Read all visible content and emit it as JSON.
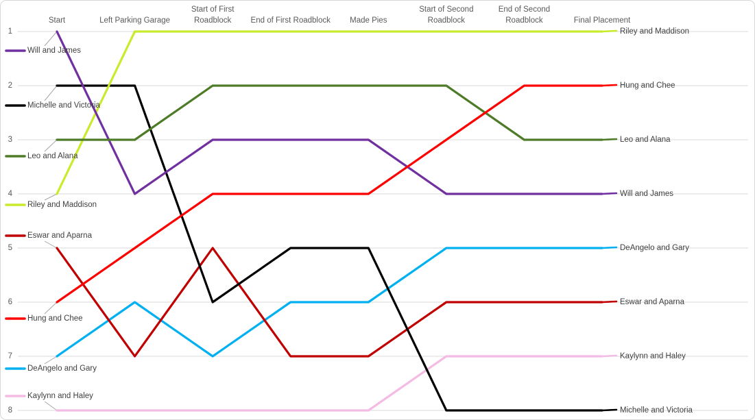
{
  "chart_data": {
    "type": "line",
    "subtype": "bump-rank-chart",
    "title": "",
    "xlabel": "",
    "ylabel": "",
    "grid": true,
    "y_axis": {
      "ticks": [
        "1",
        "2",
        "3",
        "4",
        "5",
        "6",
        "7",
        "8"
      ],
      "min": 1,
      "max": 8,
      "orientation": "rank-1-at-top"
    },
    "legend_position": "left-start-labels-and-right-end-labels",
    "categories": [
      "Start",
      "Left Parking Garage",
      "Start of First Roadblock",
      "End of First Roadblock",
      "Made Pies",
      "Start of Second Roadblock",
      "End of Second Roadblock",
      "Final Placement"
    ],
    "category_label_lines": [
      [
        "Start"
      ],
      [
        "Left Parking Garage"
      ],
      [
        "Start of First",
        "Roadblock"
      ],
      [
        "End of First Roadblock"
      ],
      [
        "Made Pies"
      ],
      [
        "Start of Second",
        "Roadblock"
      ],
      [
        "End of Second",
        "Roadblock"
      ],
      [
        "Final Placement"
      ]
    ],
    "series": [
      {
        "name": "Will and James",
        "color": "#7030A0",
        "values": [
          1,
          4,
          3,
          3,
          3,
          4,
          4,
          4
        ]
      },
      {
        "name": "Michelle and Victoria",
        "color": "#000000",
        "values": [
          2,
          2,
          6,
          5,
          5,
          8,
          8,
          8
        ]
      },
      {
        "name": "Leo and Alana",
        "color": "#4E7B28",
        "values": [
          3,
          3,
          2,
          2,
          2,
          2,
          3,
          3
        ]
      },
      {
        "name": "Riley and Maddison",
        "color": "#C8EB2D",
        "values": [
          4,
          1,
          1,
          1,
          1,
          1,
          1,
          1
        ]
      },
      {
        "name": "Eswar and Aparna",
        "color": "#C00000",
        "values": [
          5,
          7,
          5,
          7,
          7,
          6,
          6,
          6
        ]
      },
      {
        "name": "Hung and Chee",
        "color": "#FF0000",
        "values": [
          6,
          5,
          4,
          4,
          4,
          3,
          2,
          2
        ]
      },
      {
        "name": "DeAngelo and Gary",
        "color": "#00B0F0",
        "values": [
          7,
          6,
          7,
          6,
          6,
          5,
          5,
          5
        ]
      },
      {
        "name": "Kaylynn and Haley",
        "color": "#F4BCE4",
        "values": [
          8,
          8,
          8,
          8,
          8,
          7,
          7,
          7
        ]
      }
    ]
  },
  "colors": {
    "background": "#FFFFFF",
    "border": "#D7D7D7",
    "gridline": "#D9D9D9",
    "axis_text": "#595959",
    "label_text": "#3F3F3F",
    "leader_line": "#A6A6A6"
  }
}
